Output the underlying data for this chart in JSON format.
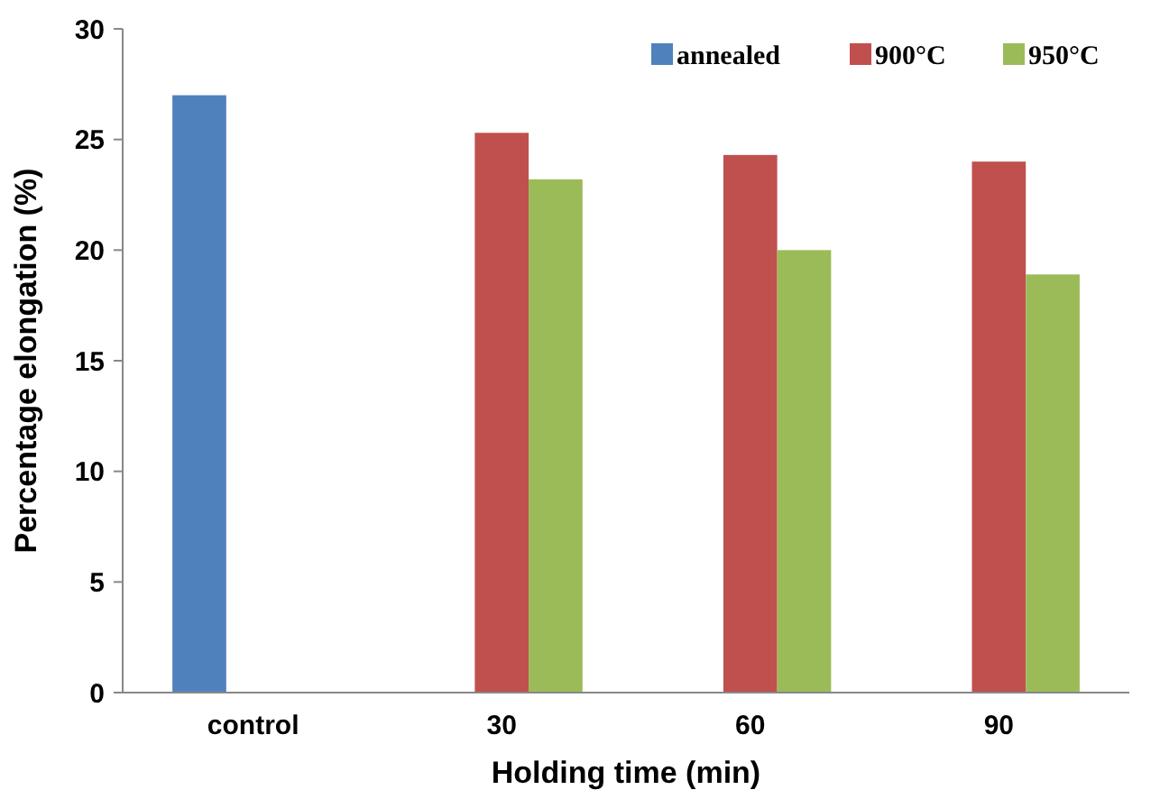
{
  "chart_data": {
    "type": "bar",
    "xlabel": "Holding time (min)",
    "ylabel": "Percentage elongation (%)",
    "categories": [
      "control",
      "30",
      "60",
      "90"
    ],
    "series": [
      {
        "name": "annealed",
        "color": "#4f81bd",
        "values": [
          27,
          null,
          null,
          null
        ]
      },
      {
        "name": "900°C",
        "color": "#c0504d",
        "values": [
          null,
          25.3,
          24.3,
          24.0
        ]
      },
      {
        "name": "950°C",
        "color": "#9bbb59",
        "values": [
          null,
          23.2,
          20.0,
          18.9
        ]
      }
    ],
    "ylim": [
      0,
      30
    ],
    "yticks": [
      0,
      5,
      10,
      15,
      20,
      25,
      30
    ],
    "grid": false,
    "legend": "top right"
  }
}
